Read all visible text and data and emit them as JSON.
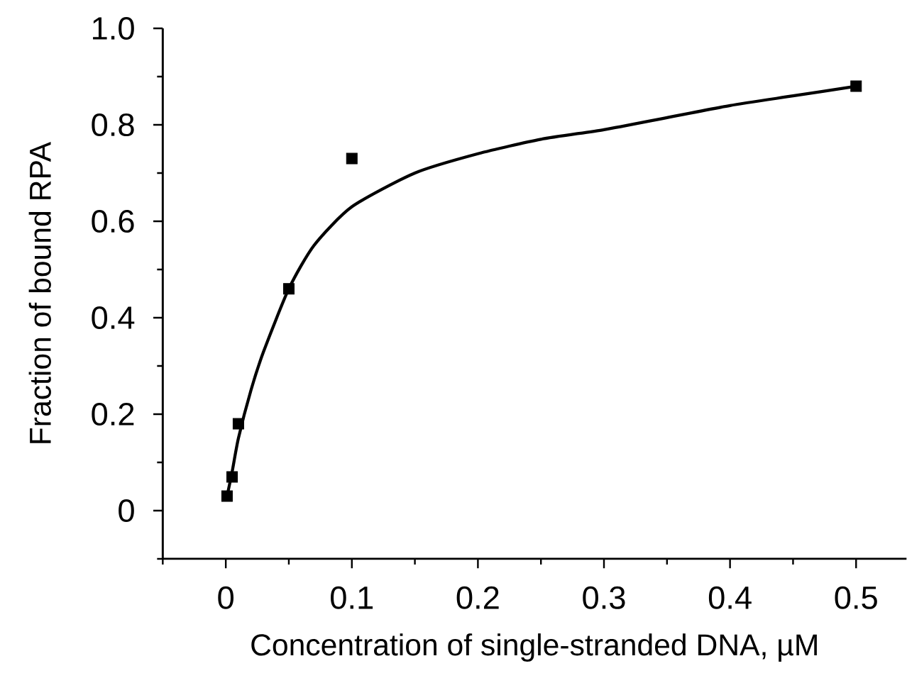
{
  "chart_data": {
    "type": "scatter",
    "xlabel": "Concentration of single-stranded DNA, µM",
    "ylabel": "Fraction of bound RPA",
    "xlim": [
      -0.05,
      0.54
    ],
    "ylim": [
      -0.1,
      1.0
    ],
    "xticks": [
      {
        "value": -0.05,
        "label": null
      },
      0,
      {
        "value": 0.05,
        "label": null
      },
      0.1,
      {
        "value": 0.15,
        "label": null
      },
      0.2,
      {
        "value": 0.25,
        "label": null
      },
      0.3,
      {
        "value": 0.35,
        "label": null
      },
      0.4,
      {
        "value": 0.45,
        "label": null
      },
      0.5
    ],
    "yticks": [
      {
        "value": -0.1,
        "label": null
      },
      0,
      {
        "value": 0.1,
        "label": null
      },
      0.2,
      {
        "value": 0.3,
        "label": null
      },
      0.4,
      {
        "value": 0.5,
        "label": null
      },
      0.6,
      {
        "value": 0.7,
        "label": null
      },
      0.8,
      {
        "value": 0.9,
        "label": null
      },
      {
        "value": 1.0,
        "label": "1.0"
      }
    ],
    "grid": false,
    "series": [
      {
        "marker": "square",
        "color": "#000000",
        "x": [
          0.001,
          0.005,
          0.01,
          0.05,
          0.1,
          0.5
        ],
        "values": [
          0.03,
          0.07,
          0.18,
          0.46,
          0.73,
          0.88
        ]
      },
      {
        "type": "line",
        "marker": "none",
        "line_style": "solid",
        "color": "#000000",
        "x": [
          0.001,
          0.005,
          0.01,
          0.02,
          0.03,
          0.05,
          0.07,
          0.1,
          0.15,
          0.2,
          0.25,
          0.3,
          0.35,
          0.4,
          0.45,
          0.5
        ],
        "values": [
          0.03,
          0.08,
          0.15,
          0.25,
          0.33,
          0.46,
          0.55,
          0.63,
          0.7,
          0.74,
          0.77,
          0.79,
          0.815,
          0.84,
          0.86,
          0.88
        ]
      }
    ]
  }
}
